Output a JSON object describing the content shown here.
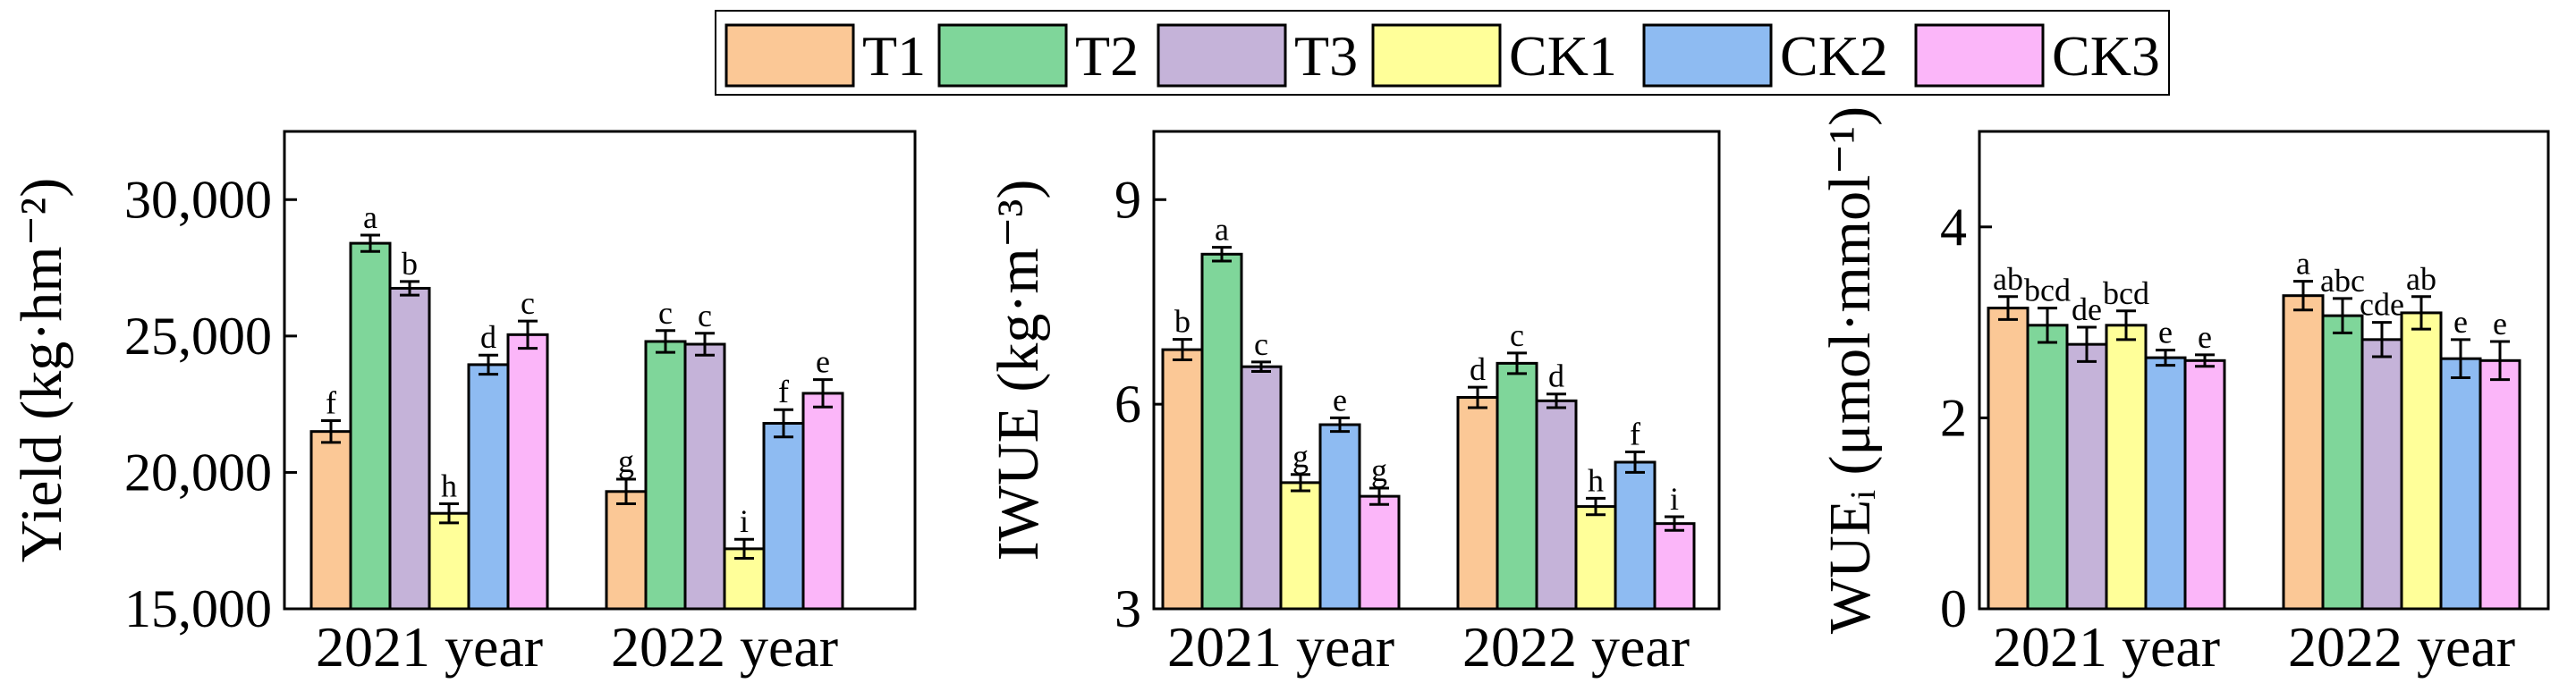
{
  "legend": [
    {
      "name": "T1",
      "color": "#FBC896"
    },
    {
      "name": "T2",
      "color": "#7FD69A"
    },
    {
      "name": "T3",
      "color": "#C5B3D9"
    },
    {
      "name": "CK1",
      "color": "#FFFF99"
    },
    {
      "name": "CK2",
      "color": "#8EBBF2"
    },
    {
      "name": "CK3",
      "color": "#FBB6F9"
    }
  ],
  "chart_data": [
    {
      "type": "bar",
      "ylabel": "Yield (kg·hm⁻²)",
      "ylim": [
        15000,
        32500
      ],
      "yticks": [
        15000,
        20000,
        25000,
        30000
      ],
      "ytick_labels": [
        "15,000",
        "20,000",
        "25,000",
        "30,000"
      ],
      "categories": [
        "2021 year",
        "2022 year"
      ],
      "series": [
        {
          "name": "T1",
          "values": [
            21500,
            19300
          ],
          "errors": [
            400,
            450
          ],
          "letters": [
            "f",
            "g"
          ]
        },
        {
          "name": "T2",
          "values": [
            28400,
            24800
          ],
          "errors": [
            300,
            400
          ],
          "letters": [
            "a",
            "c"
          ]
        },
        {
          "name": "T3",
          "values": [
            26750,
            24700
          ],
          "errors": [
            250,
            400
          ],
          "letters": [
            "b",
            "c"
          ]
        },
        {
          "name": "CK1",
          "values": [
            18500,
            17200
          ],
          "errors": [
            350,
            350
          ],
          "letters": [
            "h",
            "i"
          ]
        },
        {
          "name": "CK2",
          "values": [
            23950,
            21800
          ],
          "errors": [
            350,
            500
          ],
          "letters": [
            "d",
            "f"
          ]
        },
        {
          "name": "CK3",
          "values": [
            25050,
            22900
          ],
          "errors": [
            500,
            500
          ],
          "letters": [
            "c",
            "e"
          ]
        }
      ]
    },
    {
      "type": "bar",
      "ylabel": "IWUE (kg·m⁻³)",
      "ylim": [
        3,
        10
      ],
      "yticks": [
        3,
        6,
        9
      ],
      "ytick_labels": [
        "3",
        "6",
        "9"
      ],
      "categories": [
        "2021 year",
        "2022 year"
      ],
      "series": [
        {
          "name": "T1",
          "values": [
            6.8,
            6.1
          ],
          "errors": [
            0.15,
            0.15
          ],
          "letters": [
            "b",
            "d"
          ]
        },
        {
          "name": "T2",
          "values": [
            8.2,
            6.6
          ],
          "errors": [
            0.1,
            0.15
          ],
          "letters": [
            "a",
            "c"
          ]
        },
        {
          "name": "T3",
          "values": [
            6.55,
            6.05
          ],
          "errors": [
            0.07,
            0.1
          ],
          "letters": [
            "c",
            "d"
          ]
        },
        {
          "name": "CK1",
          "values": [
            4.85,
            4.5
          ],
          "errors": [
            0.12,
            0.12
          ],
          "letters": [
            "g",
            "h"
          ]
        },
        {
          "name": "CK2",
          "values": [
            5.7,
            5.15
          ],
          "errors": [
            0.1,
            0.15
          ],
          "letters": [
            "e",
            "f"
          ]
        },
        {
          "name": "CK3",
          "values": [
            4.65,
            4.25
          ],
          "errors": [
            0.12,
            0.1
          ],
          "letters": [
            "g",
            "i"
          ]
        }
      ]
    },
    {
      "type": "bar",
      "ylabel": "WUEᵢ (μmol·mmol⁻¹)",
      "ylim": [
        0,
        5
      ],
      "yticks": [
        0,
        2,
        4
      ],
      "ytick_labels": [
        "0",
        "2",
        "4"
      ],
      "categories": [
        "2021 year",
        "2022 year"
      ],
      "series": [
        {
          "name": "T1",
          "values": [
            3.15,
            3.28
          ],
          "errors": [
            0.12,
            0.15
          ],
          "letters": [
            "ab",
            "a"
          ]
        },
        {
          "name": "T2",
          "values": [
            2.97,
            3.07
          ],
          "errors": [
            0.18,
            0.18
          ],
          "letters": [
            "bcd",
            "abc"
          ]
        },
        {
          "name": "T3",
          "values": [
            2.77,
            2.82
          ],
          "errors": [
            0.18,
            0.18
          ],
          "letters": [
            "de",
            "cde"
          ]
        },
        {
          "name": "CK1",
          "values": [
            2.97,
            3.1
          ],
          "errors": [
            0.15,
            0.17
          ],
          "letters": [
            "bcd",
            "ab"
          ]
        },
        {
          "name": "CK2",
          "values": [
            2.63,
            2.62
          ],
          "errors": [
            0.08,
            0.2
          ],
          "letters": [
            "e",
            "e"
          ]
        },
        {
          "name": "CK3",
          "values": [
            2.6,
            2.6
          ],
          "errors": [
            0.06,
            0.2
          ],
          "letters": [
            "e",
            "e"
          ]
        }
      ]
    }
  ]
}
